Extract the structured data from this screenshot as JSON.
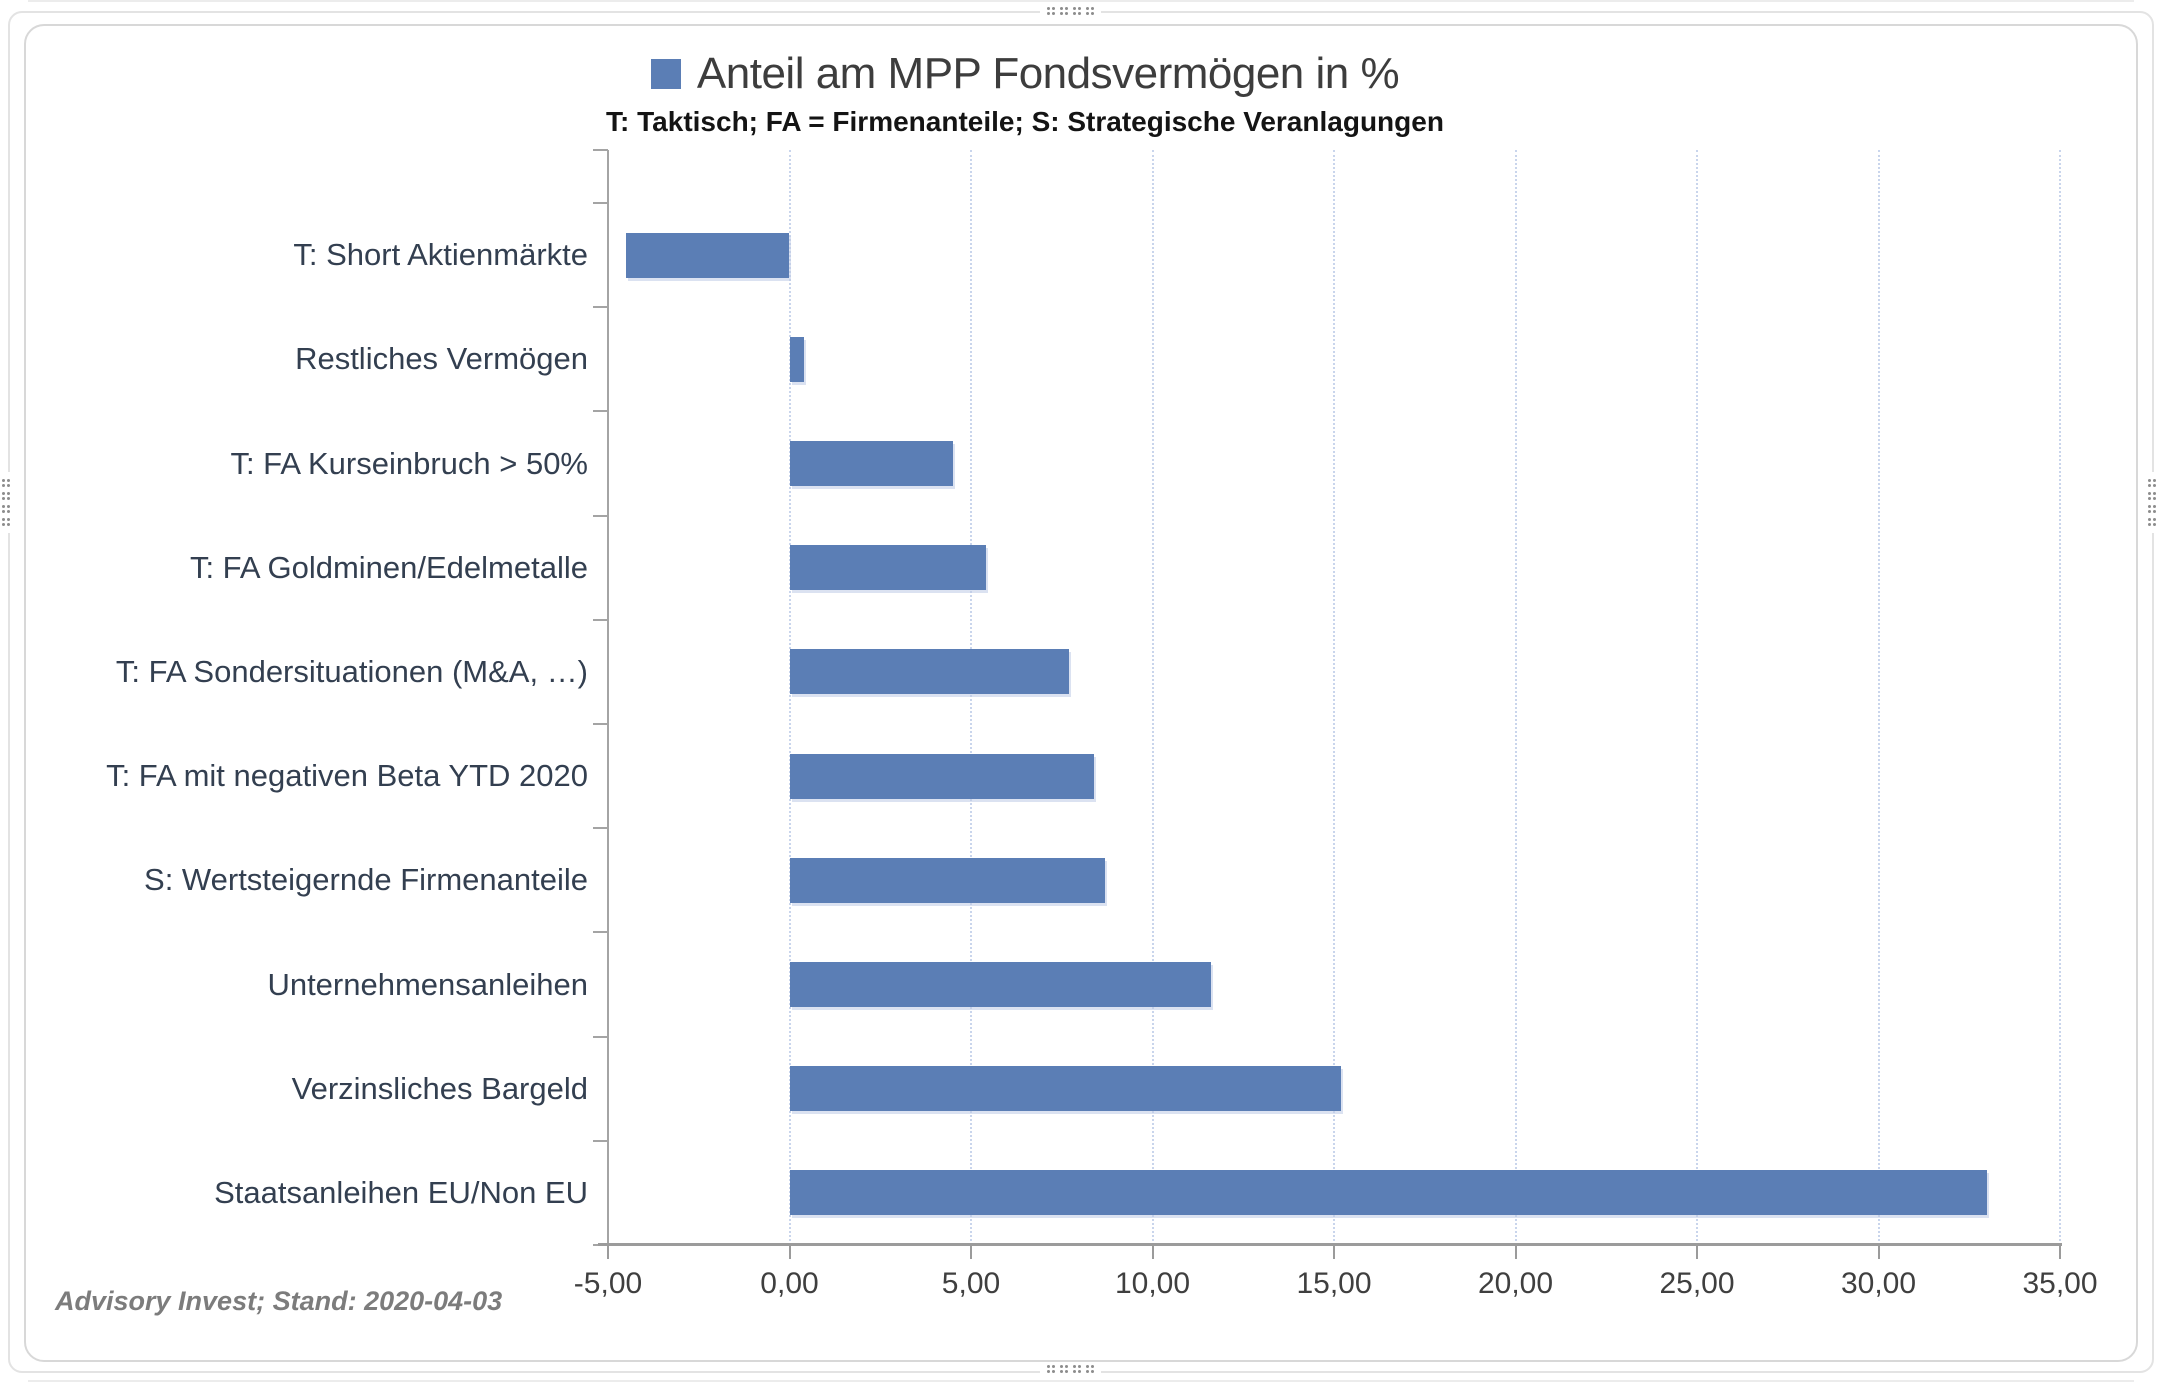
{
  "chart_data": {
    "type": "bar",
    "orientation": "horizontal",
    "title": "Anteil am MPP Fondsvermögen in %",
    "subtitle": "T: Taktisch; FA = Firmenanteile; S: Strategische Veranlagungen",
    "categories": [
      "T: Short Aktienmärkte",
      "Restliches Vermögen",
      "T: FA Kurseinbruch > 50%",
      "T: FA Goldminen/Edelmetalle",
      "T: FA Sondersituationen (M&A, …)",
      "T: FA mit negativen Beta YTD 2020",
      "S: Wertsteigernde Firmenanteile",
      "Unternehmensanleihen",
      "Verzinsliches Bargeld",
      "Staatsanleihen EU/Non EU"
    ],
    "values": [
      -4.5,
      0.4,
      4.5,
      5.4,
      7.7,
      8.4,
      8.7,
      11.6,
      15.2,
      33.0
    ],
    "xlim": [
      -5,
      35
    ],
    "x_ticks": [
      -5,
      0,
      5,
      10,
      15,
      20,
      25,
      30,
      35
    ],
    "x_tick_labels": [
      "-5,00",
      "0,00",
      "5,00",
      "10,00",
      "15,00",
      "20,00",
      "25,00",
      "30,00",
      "35,00"
    ],
    "bar_color": "#5b7eb5",
    "grid": "vertical-dotted",
    "legend": {
      "marker_color": "#5b7eb5",
      "position": "inline-with-title"
    }
  },
  "footer": {
    "source": "Advisory Invest; Stand: 2020-04-03"
  }
}
